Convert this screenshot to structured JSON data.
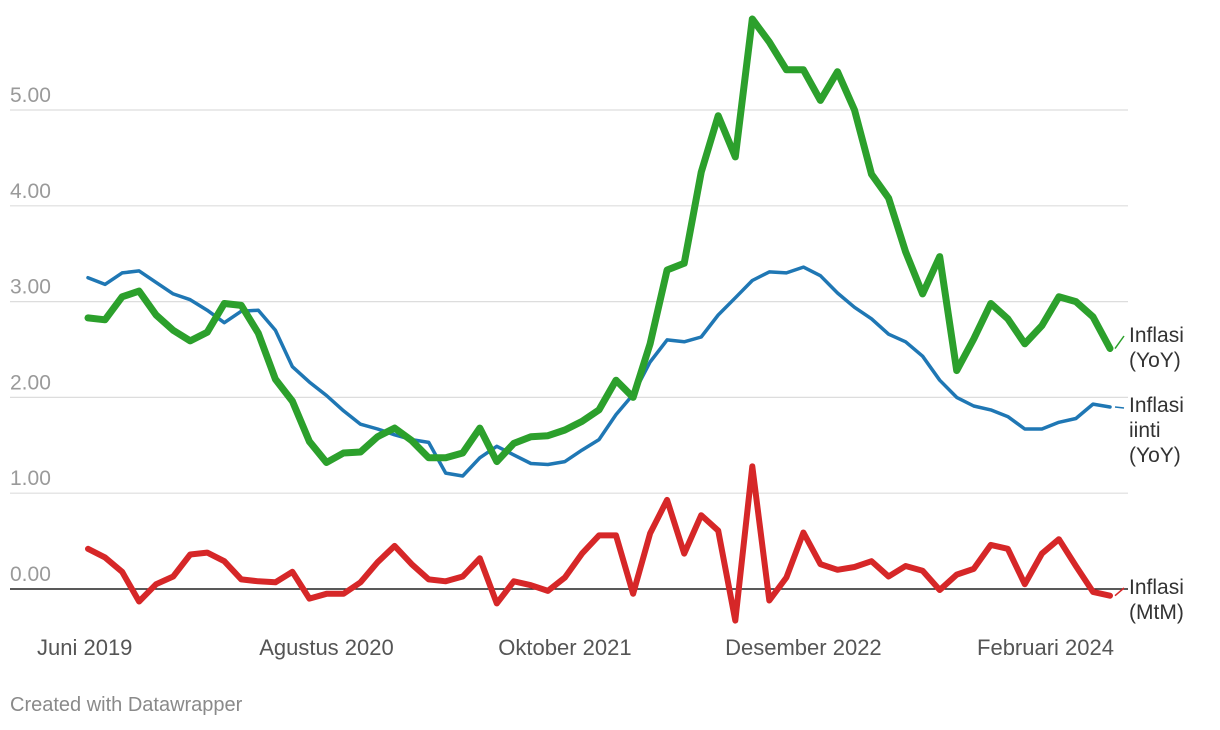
{
  "chart_data": {
    "type": "line",
    "x_tick_labels": [
      "Juni 2019",
      "Agustus 2020",
      "Oktober 2021",
      "Desember 2022",
      "Februari 2024"
    ],
    "y_tick_labels": [
      "0.00",
      "1.00",
      "2.00",
      "3.00",
      "4.00",
      "5.00"
    ],
    "y_ticks": [
      0,
      1,
      2,
      3,
      4,
      5
    ],
    "ylim": [
      -0.4,
      5.9
    ],
    "grid": true,
    "series": [
      {
        "name": "Inflasi (YoY)",
        "label_lines": [
          "Inflasi",
          "(YoY)"
        ],
        "color": "#2ca02c",
        "values": [
          2.83,
          2.81,
          3.05,
          3.11,
          2.86,
          2.7,
          2.59,
          2.68,
          2.98,
          2.96,
          2.67,
          2.19,
          1.96,
          1.54,
          1.32,
          1.42,
          1.43,
          1.59,
          1.68,
          1.55,
          1.37,
          1.37,
          1.42,
          1.68,
          1.33,
          1.52,
          1.59,
          1.6,
          1.66,
          1.75,
          1.87,
          2.18,
          2.0,
          2.56,
          3.33,
          3.4,
          4.35,
          4.94,
          4.51,
          5.95,
          5.71,
          5.42,
          5.42,
          5.1,
          5.4,
          5.0,
          4.33,
          4.08,
          3.52,
          3.08,
          3.47,
          2.28,
          2.61,
          2.98,
          2.82,
          2.56,
          2.75,
          3.05,
          3.0,
          2.84,
          2.51
        ]
      },
      {
        "name": "Inflasi inti (YoY)",
        "label_lines": [
          "Inflasi",
          "iinti",
          "(YoY)"
        ],
        "color": "#1f77b4",
        "values": [
          3.25,
          3.18,
          3.3,
          3.32,
          3.2,
          3.08,
          3.02,
          2.91,
          2.78,
          2.9,
          2.91,
          2.7,
          2.32,
          2.16,
          2.02,
          1.86,
          1.72,
          1.67,
          1.61,
          1.56,
          1.53,
          1.21,
          1.18,
          1.37,
          1.49,
          1.4,
          1.31,
          1.3,
          1.33,
          1.45,
          1.56,
          1.82,
          2.03,
          2.37,
          2.6,
          2.58,
          2.63,
          2.86,
          3.04,
          3.22,
          3.31,
          3.3,
          3.36,
          3.27,
          3.09,
          2.94,
          2.82,
          2.66,
          2.58,
          2.43,
          2.18,
          2.0,
          1.91,
          1.87,
          1.8,
          1.67,
          1.67,
          1.74,
          1.78,
          1.93,
          1.9
        ]
      },
      {
        "name": "Inflasi (MtM)",
        "label_lines": [
          "Inflasi",
          "(MtM)"
        ],
        "color": "#d62728",
        "values": [
          0.42,
          0.33,
          0.18,
          -0.13,
          0.05,
          0.13,
          0.36,
          0.38,
          0.29,
          0.1,
          0.08,
          0.07,
          0.18,
          -0.1,
          -0.05,
          -0.05,
          0.07,
          0.28,
          0.45,
          0.26,
          0.1,
          0.08,
          0.13,
          0.32,
          -0.15,
          0.08,
          0.04,
          -0.02,
          0.12,
          0.37,
          0.56,
          0.56,
          -0.05,
          0.58,
          0.93,
          0.37,
          0.77,
          0.61,
          -0.33,
          1.28,
          -0.12,
          0.12,
          0.59,
          0.26,
          0.2,
          0.23,
          0.29,
          0.13,
          0.24,
          0.19,
          -0.01,
          0.15,
          0.21,
          0.46,
          0.42,
          0.05,
          0.37,
          0.52,
          0.24,
          -0.03,
          -0.07
        ]
      }
    ]
  },
  "footer": {
    "credit": "Created with Datawrapper"
  }
}
